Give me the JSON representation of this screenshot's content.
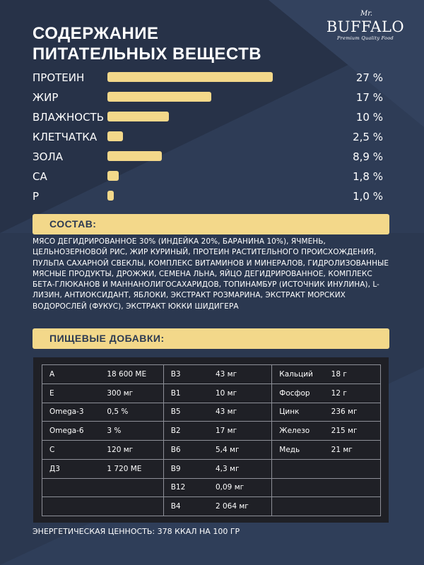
{
  "header": {
    "title_line1": "СОДЕРЖАНИЕ",
    "title_line2": "ПИТАТЕЛЬНЫХ ВЕЩЕСТВ"
  },
  "logo": {
    "mr": "Mr.",
    "brand": "BUFFALO",
    "tagline": "Premium Quality Food"
  },
  "chart_data": {
    "type": "bar",
    "categories": [
      "ПРОТЕИН",
      "ЖИР",
      "ВЛАЖНОСТЬ",
      "КЛЕТЧАТКА",
      "ЗОЛА",
      "CA",
      "P"
    ],
    "values": [
      27,
      17,
      10,
      2.5,
      8.9,
      1.8,
      1.0
    ],
    "value_labels": [
      "27 %",
      "17 %",
      "10 %",
      "2,5 %",
      "8,9 %",
      "1,8 %",
      "1,0 %"
    ],
    "orientation": "horizontal",
    "xlim": [
      0,
      37
    ],
    "bar_color": "#f3d88a",
    "grid": false,
    "title": "",
    "xlabel": "",
    "ylabel": ""
  },
  "composition": {
    "heading": "СОСТАВ:",
    "text": "МЯСО ДЕГИДРИРОВАННОЕ 30% (ИНДЕЙКА 20%, БАРАНИНА 10%), ЯЧМЕНЬ, ЦЕЛЬНОЗЕРНОВОЙ РИС, ЖИР КУРИНЫЙ, ПРОТЕИН РАСТИТЕЛЬНОГО ПРОИСХОЖДЕНИЯ, ПУЛЬПА САХАРНОЙ СВЕКЛЫ, КОМПЛЕКС ВИТАМИНОВ И МИНЕРАЛОВ, ГИДРОЛИЗОВАННЫЕ МЯСНЫЕ ПРОДУКТЫ, ДРОЖЖИ, СЕМЕНА ЛЬНА, ЯЙЦО ДЕГИДРИРОВАННОЕ, КОМПЛЕКС БЕТА-ГЛЮКАНОВ И МАННАНОЛИГОСАХАРИДОВ, ТОПИНАМБУР (ИСТОЧНИК ИНУЛИНА), L-ЛИЗИН, АНТИОКСИДАНТ, ЯБЛОКИ, ЭКСТРАКТ РОЗМАРИНА, ЭКСТРАКТ МОРСКИХ ВОДОРОСЛЕЙ (ФУКУС), ЭКСТРАКТ ЮККИ ШИДИГЕРА"
  },
  "additives": {
    "heading": "ПИЩЕВЫЕ ДОБАВКИ:",
    "rows": [
      [
        "A",
        "18 600 МЕ",
        "B3",
        "43 мг",
        "Кальций",
        "18 г"
      ],
      [
        "E",
        "300 мг",
        "B1",
        "10 мг",
        "Фосфор",
        "12 г"
      ],
      [
        "Omega-3",
        "0,5 %",
        "B5",
        "43 мг",
        "Цинк",
        "236 мг"
      ],
      [
        "Omega-6",
        "3 %",
        "B2",
        "17 мг",
        "Железо",
        "215 мг"
      ],
      [
        "C",
        "120 мг",
        "B6",
        "5,4 мг",
        "Медь",
        "21 мг"
      ],
      [
        "Д3",
        "1 720 МЕ",
        "B9",
        "4,3 мг",
        "",
        ""
      ],
      [
        "",
        "",
        "B12",
        "0,09 мг",
        "",
        ""
      ],
      [
        "",
        "",
        "B4",
        "2 064 мг",
        "",
        ""
      ]
    ]
  },
  "energy": "ЭНЕРГЕТИЧЕСКАЯ ЦЕННОСТЬ: 378 ККАЛ НА 100 ГР",
  "colors": {
    "background": "#2c3a52",
    "accent": "#f3d88a",
    "table_background": "#1f2026"
  }
}
